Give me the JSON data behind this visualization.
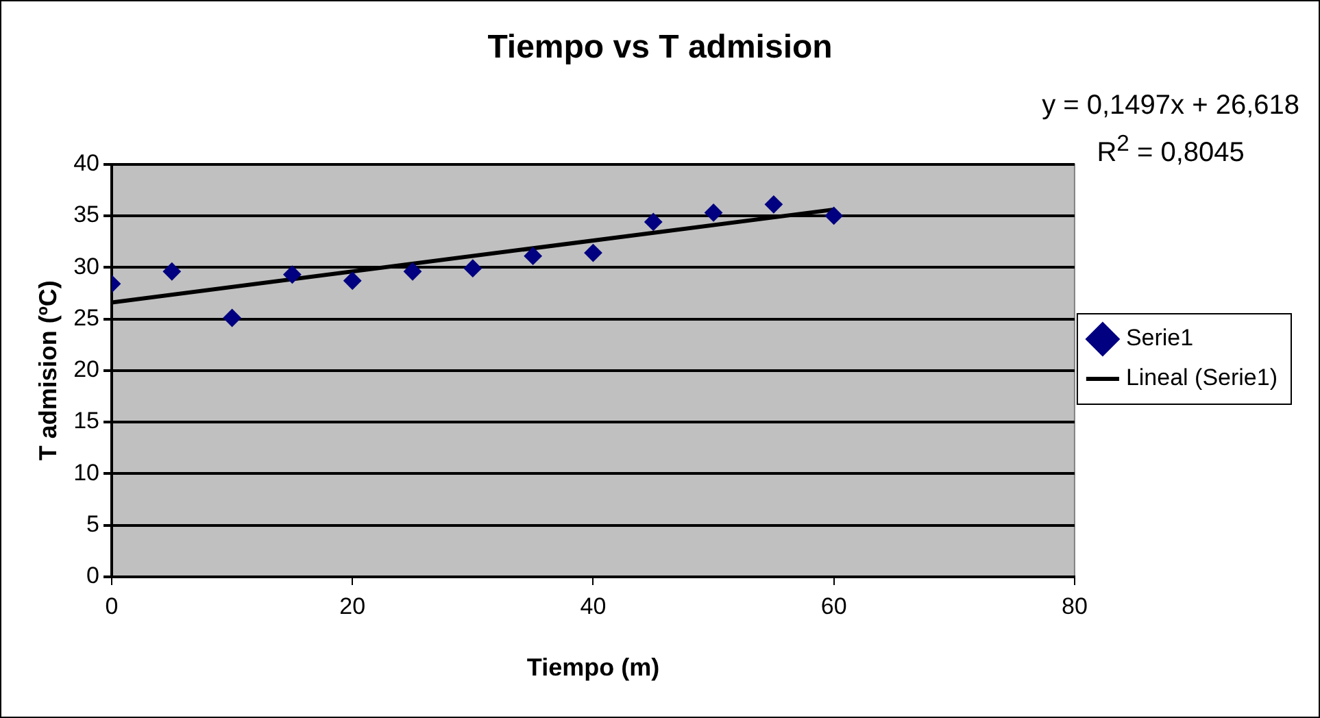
{
  "chart_data": {
    "type": "scatter",
    "title": "Tiempo vs T admision",
    "xlabel": "Tiempo (m)",
    "ylabel": "T admision (ºC)",
    "xlim": [
      0,
      80
    ],
    "xticks": [
      0,
      20,
      40,
      60,
      80
    ],
    "ylim": [
      0,
      40
    ],
    "yticks": [
      0,
      5,
      10,
      15,
      20,
      25,
      30,
      35,
      40
    ],
    "grid": "y",
    "legend": "right",
    "series": [
      {
        "name": "Serie1",
        "marker": "diamond",
        "color": "#000080",
        "x": [
          0,
          5,
          10,
          15,
          20,
          25,
          30,
          35,
          40,
          45,
          50,
          55,
          60
        ],
        "values": [
          28.4,
          29.6,
          25.1,
          29.3,
          28.7,
          29.6,
          29.9,
          31.1,
          31.4,
          34.4,
          35.3,
          36.1,
          35.0
        ]
      },
      {
        "name": "Lineal (Serie1)",
        "type": "line",
        "color": "#000000",
        "x": [
          0,
          60
        ],
        "values": [
          26.6,
          35.6
        ]
      }
    ],
    "annotations": [
      "y = 0,1497x + 26,618",
      "R$^{2}$ = 0,8045"
    ]
  }
}
